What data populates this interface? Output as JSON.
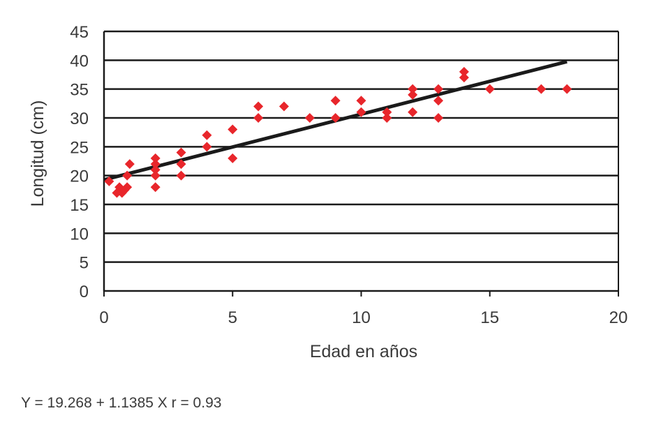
{
  "chart_data": {
    "type": "scatter",
    "xlabel": "Edad en años",
    "ylabel": "Longitud (cm)",
    "xlim": [
      0,
      20
    ],
    "ylim": [
      0,
      45
    ],
    "x_ticks": [
      "0",
      "5",
      "10",
      "15",
      "20"
    ],
    "y_ticks": [
      "0",
      "5",
      "10",
      "15",
      "20",
      "25",
      "30",
      "35",
      "40",
      "45"
    ],
    "grid": "horizontal",
    "marker_color": "#e8262b",
    "trendline_color": "#1a1a1a",
    "trendline": {
      "intercept": 19.268,
      "slope": 1.1385,
      "x_range": [
        0,
        18
      ]
    },
    "points": [
      {
        "x": 0.2,
        "y": 19
      },
      {
        "x": 0.5,
        "y": 17
      },
      {
        "x": 0.6,
        "y": 18
      },
      {
        "x": 0.7,
        "y": 17
      },
      {
        "x": 0.8,
        "y": 17.5
      },
      {
        "x": 0.9,
        "y": 18
      },
      {
        "x": 0.9,
        "y": 20
      },
      {
        "x": 1,
        "y": 22
      },
      {
        "x": 2,
        "y": 18
      },
      {
        "x": 2,
        "y": 20
      },
      {
        "x": 2,
        "y": 21
      },
      {
        "x": 2,
        "y": 22
      },
      {
        "x": 2,
        "y": 23
      },
      {
        "x": 3,
        "y": 20
      },
      {
        "x": 3,
        "y": 22
      },
      {
        "x": 3,
        "y": 24
      },
      {
        "x": 4,
        "y": 25
      },
      {
        "x": 4,
        "y": 27
      },
      {
        "x": 5,
        "y": 23
      },
      {
        "x": 5,
        "y": 28
      },
      {
        "x": 6,
        "y": 30
      },
      {
        "x": 6,
        "y": 32
      },
      {
        "x": 7,
        "y": 32
      },
      {
        "x": 8,
        "y": 30
      },
      {
        "x": 9,
        "y": 30
      },
      {
        "x": 9,
        "y": 33
      },
      {
        "x": 10,
        "y": 31
      },
      {
        "x": 10,
        "y": 33
      },
      {
        "x": 11,
        "y": 30
      },
      {
        "x": 11,
        "y": 31
      },
      {
        "x": 12,
        "y": 31
      },
      {
        "x": 12,
        "y": 34
      },
      {
        "x": 12,
        "y": 35
      },
      {
        "x": 13,
        "y": 30
      },
      {
        "x": 13,
        "y": 33
      },
      {
        "x": 13,
        "y": 35
      },
      {
        "x": 14,
        "y": 37
      },
      {
        "x": 14,
        "y": 38
      },
      {
        "x": 15,
        "y": 35
      },
      {
        "x": 17,
        "y": 35
      },
      {
        "x": 18,
        "y": 35
      }
    ]
  },
  "equation": "Y = 19.268 + 1.1385 X r = 0.93"
}
